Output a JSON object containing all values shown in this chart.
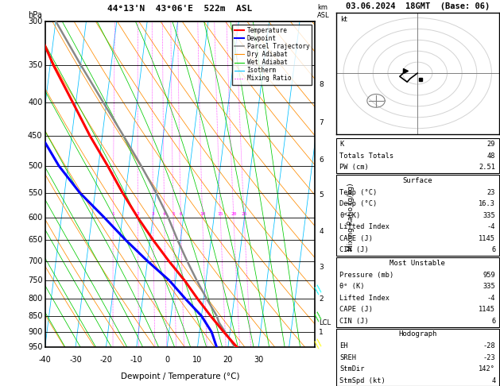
{
  "title_skewt": "44°13'N  43°06'E  522m  ASL",
  "title_right": "03.06.2024  18GMT  (Base: 06)",
  "xlabel": "Dewpoint / Temperature (°C)",
  "p_levels": [
    300,
    350,
    400,
    450,
    500,
    550,
    600,
    650,
    700,
    750,
    800,
    850,
    900,
    950
  ],
  "p_min": 300,
  "p_max": 950,
  "t_min": -40,
  "t_max": 35,
  "isotherm_color": "#00bfff",
  "dry_adiabat_color": "#ff8c00",
  "wet_adiabat_color": "#00cc00",
  "mixing_ratio_color": "#ff00ff",
  "mixing_ratio_values": [
    1,
    2,
    3,
    4,
    5,
    6,
    10,
    15,
    20,
    25
  ],
  "temp_color": "#ff0000",
  "dewp_color": "#0000ff",
  "parcel_color": "#888888",
  "lcl_pressure": 870,
  "km_levels": {
    "1": 900,
    "2": 800,
    "3": 715,
    "4": 630,
    "5": 555,
    "6": 490,
    "7": 430,
    "8": 375
  },
  "skew": 27,
  "temp_profile": {
    "pressure": [
      950,
      900,
      850,
      800,
      750,
      700,
      650,
      600,
      550,
      500,
      450,
      400,
      350,
      300
    ],
    "temperature": [
      23,
      18,
      13,
      8,
      3,
      -3,
      -9,
      -15,
      -21,
      -27,
      -34,
      -41,
      -49,
      -57
    ]
  },
  "dewp_profile": {
    "pressure": [
      950,
      900,
      850,
      800,
      750,
      700,
      650,
      600,
      550,
      500,
      450,
      400,
      350,
      300
    ],
    "temperature": [
      16.3,
      14,
      10,
      4,
      -2,
      -10,
      -18,
      -26,
      -35,
      -43,
      -50,
      -55,
      -60,
      -65
    ]
  },
  "parcel_profile": {
    "pressure": [
      959,
      920,
      870,
      850,
      800,
      750,
      700,
      650,
      600,
      550,
      500,
      450,
      400,
      350,
      300
    ],
    "temperature": [
      23,
      20,
      16,
      15,
      11,
      7,
      3,
      -1,
      -5,
      -10,
      -16,
      -23,
      -31,
      -40,
      -50
    ]
  },
  "stats": {
    "K": 29,
    "Totals_Totals": 48,
    "PW_cm": "2.51",
    "Surf_Temp": 23,
    "Surf_Dewp": "16.3",
    "Surf_theta_e": 335,
    "Surf_LI": -4,
    "Surf_CAPE": 1145,
    "Surf_CIN": 6,
    "MU_Pressure": 959,
    "MU_theta_e": 335,
    "MU_LI": -4,
    "MU_CAPE": 1145,
    "MU_CIN": 6,
    "EH": -28,
    "SREH": -23,
    "StmDir": "142°",
    "StmSpd": 4
  }
}
